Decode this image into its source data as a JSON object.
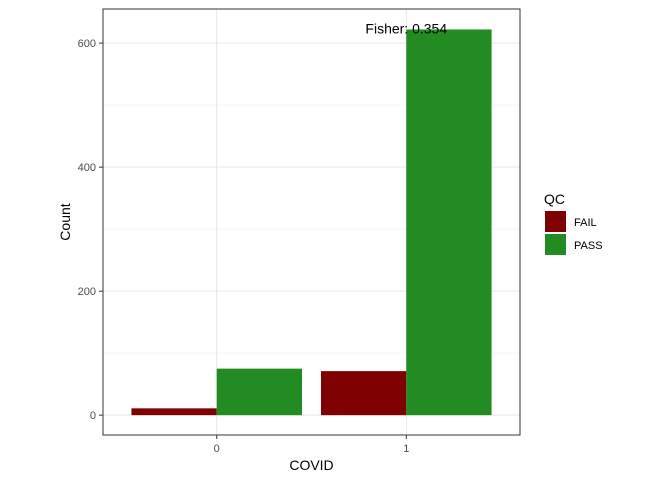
{
  "chart_data": {
    "type": "bar",
    "xlabel": "COVID",
    "ylabel": "Count",
    "categories": [
      "0",
      "1"
    ],
    "series": [
      {
        "name": "FAIL",
        "values": [
          11,
          71
        ],
        "color": "#7f0000"
      },
      {
        "name": "PASS",
        "values": [
          75,
          622
        ],
        "color": "#228b22"
      }
    ],
    "ylim": [
      -32,
      655
    ],
    "yticks": [
      0,
      200,
      400,
      600
    ],
    "yminor": [
      100,
      300,
      500
    ],
    "annotation": "Fisher: 0.354",
    "annotation_x": 1,
    "annotation_y": 622,
    "legend": {
      "title": "QC",
      "position": "right"
    },
    "grid": true,
    "theme": "bw"
  }
}
